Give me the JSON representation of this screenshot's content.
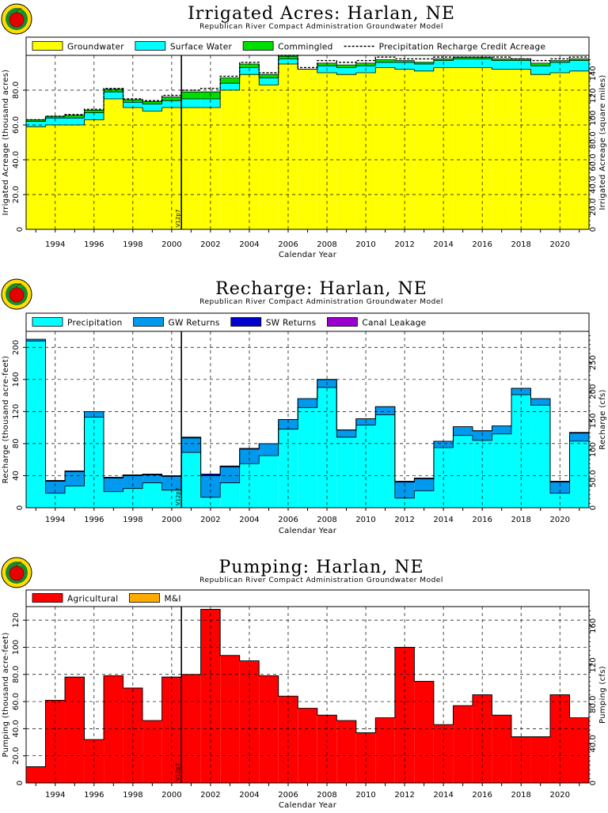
{
  "panels": [
    {
      "key": "acres",
      "title": "Irrigated Acres: Harlan, NE",
      "subtitle": "Republican River Compact Administration Groundwater Model",
      "chart_data": {
        "type": "area",
        "stacked": true,
        "title": "Irrigated Acres: Harlan, NE",
        "xlabel": "Calendar Year",
        "ylabel": "Irrigated Acreage (thousand acres)",
        "ylabel_right": "Irrigated Acreage (square miles)",
        "x": [
          1993,
          1994,
          1995,
          1996,
          1997,
          1998,
          1999,
          2000,
          2001,
          2002,
          2003,
          2004,
          2005,
          2006,
          2007,
          2008,
          2009,
          2010,
          2011,
          2012,
          2013,
          2014,
          2015,
          2016,
          2017,
          2018,
          2019,
          2020,
          2021
        ],
        "xlim": [
          1992.5,
          2021.5
        ],
        "ylim": [
          0,
          100
        ],
        "yticks": [
          "20.0",
          "40.0",
          "60.0",
          "80.0"
        ],
        "yticks_right": [
          "20.0",
          "40.0",
          "60.0",
          "80.0",
          "100",
          "120",
          "140"
        ],
        "right_scale": 1.5625,
        "xticks": [
          "1994",
          "1996",
          "1998",
          "2000",
          "2002",
          "2004",
          "2006",
          "2008",
          "2010",
          "2012",
          "2014",
          "2016",
          "2018",
          "2020"
        ],
        "marker": {
          "x": 2000.5,
          "label": "V12p7"
        },
        "series": [
          {
            "name": "Groundwater",
            "color": "#ffff00",
            "values": [
              59,
              60,
              60,
              63,
              75,
              70,
              68,
              70,
              70,
              70,
              80,
              89,
              83,
              95,
              92,
              90,
              89,
              90,
              93,
              92,
              91,
              93,
              93,
              93,
              92,
              92,
              89,
              90,
              91
            ]
          },
          {
            "name": "Surface Water",
            "color": "#00ffff",
            "values": [
              3,
              4,
              4,
              4,
              4,
              3,
              4,
              4,
              5,
              5,
              4,
              4,
              4,
              3,
              0,
              4,
              4,
              4,
              3,
              4,
              4,
              4,
              5,
              5,
              5,
              5,
              5,
              6,
              6
            ]
          },
          {
            "name": "Commingled",
            "color": "#00dd00",
            "values": [
              1,
              1,
              1.5,
              1.5,
              1.5,
              1.5,
              1.5,
              2,
              4,
              4,
              3,
              2,
              2,
              1.5,
              0,
              1.5,
              1.5,
              1.5,
              1.5,
              1,
              1,
              1,
              1,
              1,
              1,
              1,
              1.5,
              1,
              1
            ]
          }
        ],
        "line_series": {
          "name": "Precipitation Recharge Credit Acreage",
          "style": "dashed",
          "values": [
            63,
            65,
            66,
            69,
            81,
            75,
            74,
            77,
            80,
            81,
            88,
            96,
            90,
            100,
            93,
            97,
            96,
            97,
            99,
            98,
            98,
            99,
            99,
            99,
            99,
            98,
            97,
            98,
            99
          ]
        }
      }
    },
    {
      "key": "recharge",
      "title": "Recharge: Harlan, NE",
      "subtitle": "Republican River Compact Administration Groundwater Model",
      "chart_data": {
        "type": "area",
        "stacked": true,
        "title": "Recharge: Harlan, NE",
        "xlabel": "Calendar Year",
        "ylabel": "Recharge (thousand acre-feet)",
        "ylabel_right": "Recharge (cfs)",
        "x": [
          1993,
          1994,
          1995,
          1996,
          1997,
          1998,
          1999,
          2000,
          2001,
          2002,
          2003,
          2004,
          2005,
          2006,
          2007,
          2008,
          2009,
          2010,
          2011,
          2012,
          2013,
          2014,
          2015,
          2016,
          2017,
          2018,
          2019,
          2020,
          2021
        ],
        "xlim": [
          1992.5,
          2021.5
        ],
        "ylim": [
          0,
          220
        ],
        "yticks": [
          "40",
          "80",
          "120",
          "160",
          "200"
        ],
        "yticks_right": [
          "50.0",
          "100",
          "150",
          "200",
          "250"
        ],
        "right_scale": 1.3812,
        "xticks": [
          "1994",
          "1996",
          "1998",
          "2000",
          "2002",
          "2004",
          "2006",
          "2008",
          "2010",
          "2012",
          "2014",
          "2016",
          "2018",
          "2020"
        ],
        "marker": {
          "x": 2000.5,
          "label": "V12p7"
        },
        "series": [
          {
            "name": "Precipitation",
            "color": "#00ffff",
            "values": [
              208,
              18,
              27,
              113,
              20,
              24,
              31,
              22,
              69,
              13,
              31,
              55,
              65,
              98,
              125,
              150,
              88,
              103,
              116,
              12,
              21,
              75,
              90,
              84,
              92,
              141,
              128,
              18,
              83
            ]
          },
          {
            "name": "GW Returns",
            "color": "#0099ee",
            "values": [
              2,
              15,
              18,
              7,
              17,
              16,
              10,
              17,
              18,
              27,
              20,
              18,
              15,
              12,
              11,
              10,
              9,
              8,
              10,
              20,
              15,
              8,
              11,
              12,
              10,
              8,
              8,
              14,
              10
            ]
          },
          {
            "name": "SW Returns",
            "color": "#0000cc",
            "values": [
              0,
              1,
              1,
              0,
              1,
              1,
              1,
              1,
              1,
              2,
              1,
              1,
              0,
              0,
              0,
              0,
              0,
              0,
              0,
              1,
              1,
              0,
              0,
              0,
              0,
              0,
              0,
              1,
              1
            ]
          },
          {
            "name": "Canal Leakage",
            "color": "#9900cc",
            "values": [
              0,
              0,
              0,
              0,
              0,
              0,
              0,
              0,
              0,
              0,
              0,
              0,
              0,
              0,
              0,
              0,
              0,
              0,
              0,
              0,
              0,
              0,
              0,
              0,
              0,
              0,
              0,
              0,
              0
            ]
          }
        ]
      }
    },
    {
      "key": "pumping",
      "title": "Pumping: Harlan, NE",
      "subtitle": "Republican River Compact Administration Groundwater Model",
      "chart_data": {
        "type": "area",
        "stacked": true,
        "title": "Pumping: Harlan, NE",
        "xlabel": "Calendar Year",
        "ylabel": "Pumping (thousand acre-feet)",
        "ylabel_right": "Pumping (cfs)",
        "x": [
          1993,
          1994,
          1995,
          1996,
          1997,
          1998,
          1999,
          2000,
          2001,
          2002,
          2003,
          2004,
          2005,
          2006,
          2007,
          2008,
          2009,
          2010,
          2011,
          2012,
          2013,
          2014,
          2015,
          2016,
          2017,
          2018,
          2019,
          2020,
          2021
        ],
        "xlim": [
          1992.5,
          2021.5
        ],
        "ylim": [
          0,
          130
        ],
        "yticks": [
          "20.0",
          "40.0",
          "60.0",
          "80.0",
          "100",
          "120"
        ],
        "yticks_right": [
          "40.0",
          "80.0",
          "120",
          "160"
        ],
        "right_scale": 1.3812,
        "xticks": [
          "1994",
          "1996",
          "1998",
          "2000",
          "2002",
          "2004",
          "2006",
          "2008",
          "2010",
          "2012",
          "2014",
          "2016",
          "2018",
          "2020"
        ],
        "marker": {
          "x": 2000.5,
          "label": "V12p7"
        },
        "series": [
          {
            "name": "Agricultural",
            "color": "#ff0000",
            "values": [
              12,
              61,
              78,
              32,
              79,
              70,
              46,
              78,
              80,
              128,
              94,
              90,
              79,
              64,
              55,
              50,
              46,
              37,
              48,
              100,
              75,
              43,
              57,
              65,
              50,
              34,
              34,
              65,
              48
            ]
          },
          {
            "name": "M&I",
            "color": "#ffaa00",
            "values": [
              0,
              0,
              0,
              0,
              0,
              0,
              0,
              0,
              0,
              0,
              0,
              0,
              0,
              0,
              0,
              0,
              0,
              0,
              0,
              0,
              0,
              0,
              0,
              0,
              0,
              0,
              0,
              0,
              0
            ]
          }
        ]
      }
    }
  ]
}
